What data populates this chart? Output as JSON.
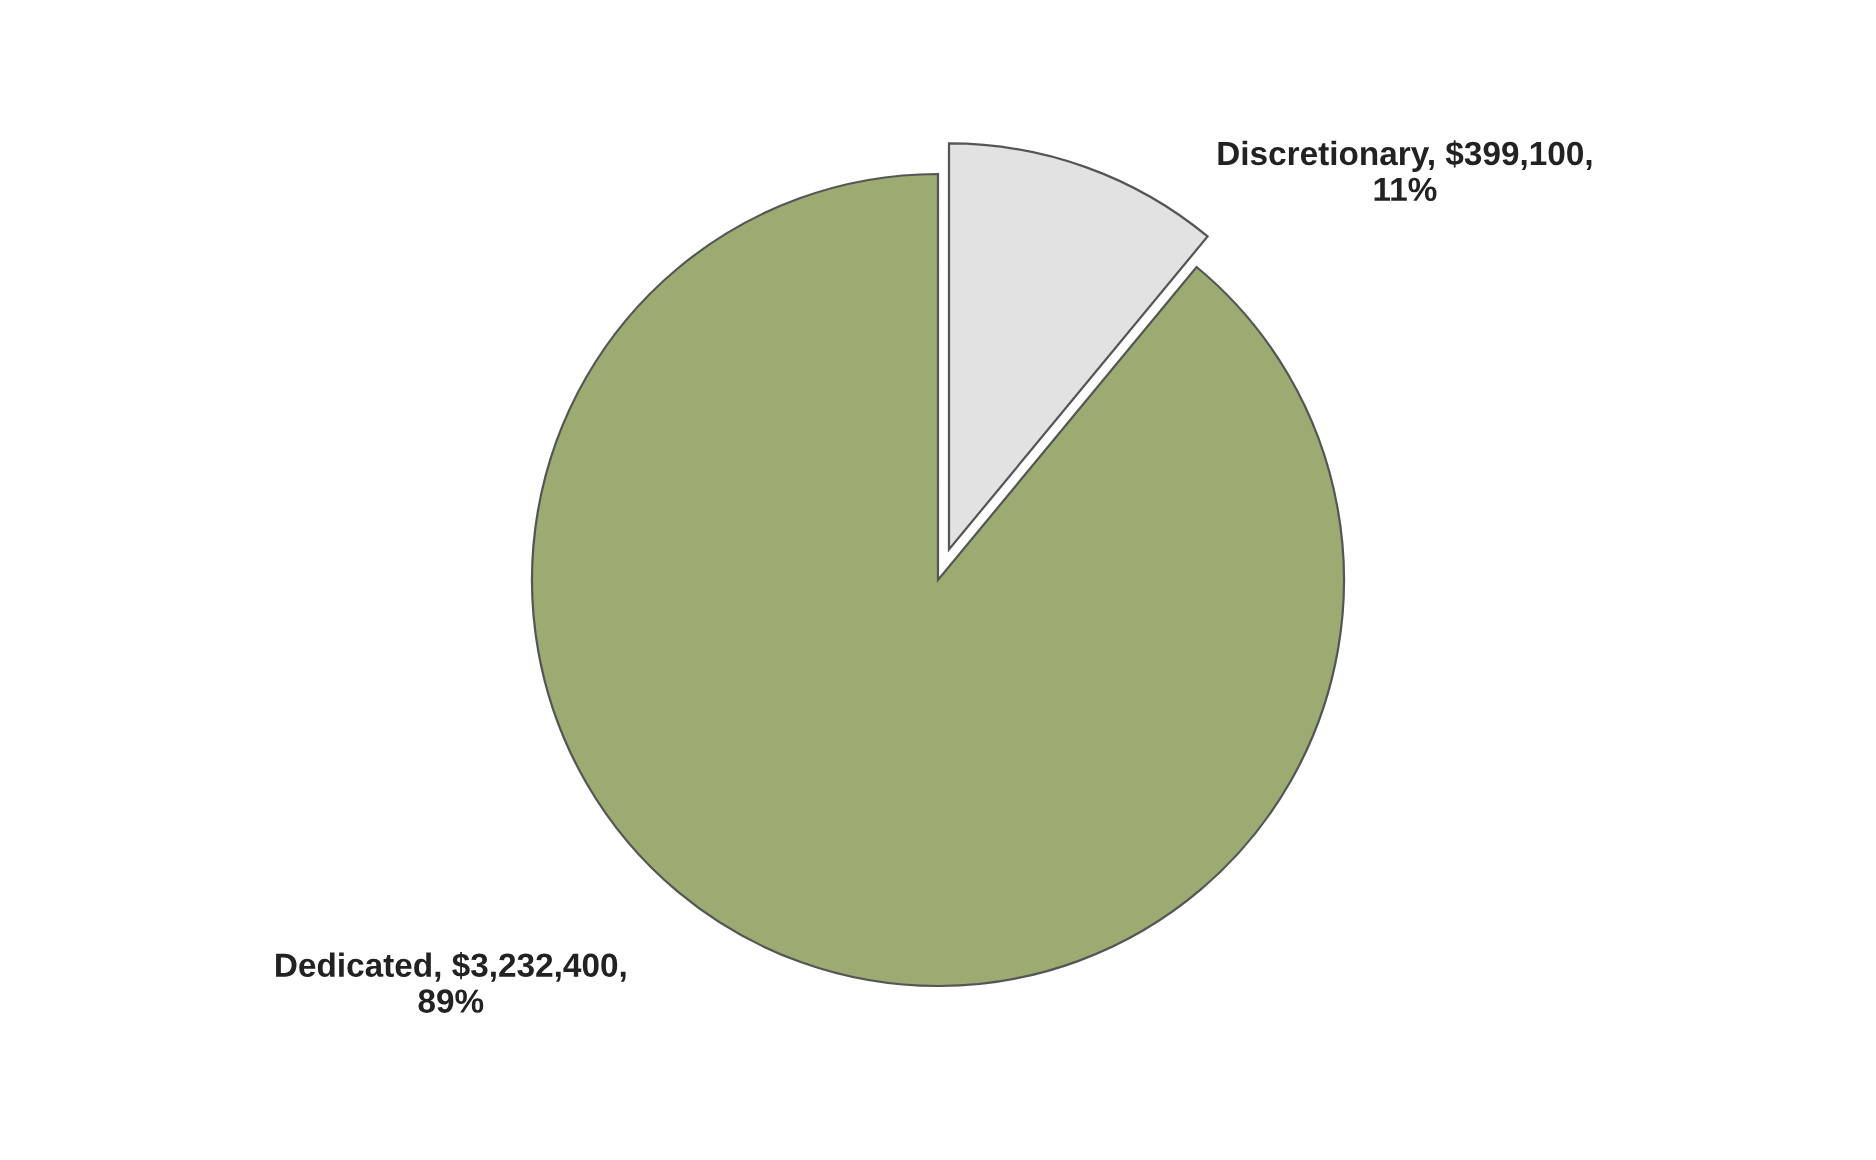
{
  "chart_data": {
    "type": "pie",
    "categories": [
      "Discretionary",
      "Dedicated"
    ],
    "values": [
      399100,
      3232400
    ],
    "value_labels": [
      "$399,100, 11%",
      "$3,232,400, 89%"
    ],
    "colors": [
      "#e2e2e2",
      "#9cab72"
    ]
  }
}
